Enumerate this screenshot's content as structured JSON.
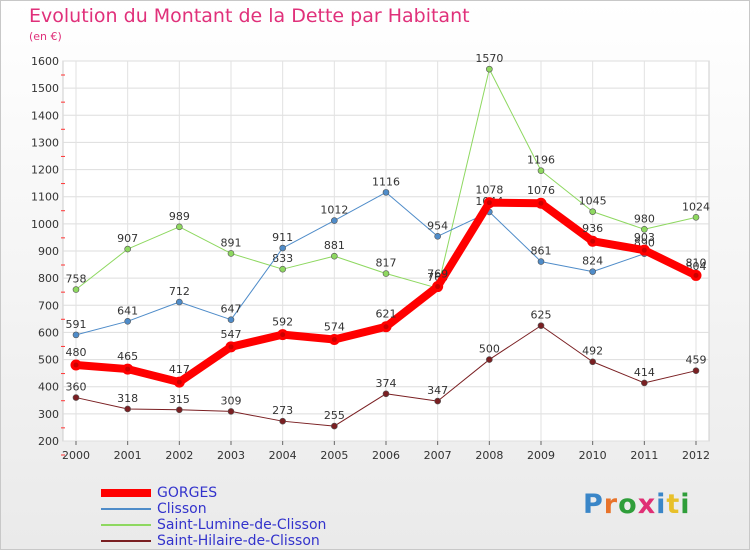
{
  "header": {
    "title": "Evolution du Montant de la Dette par Habitant",
    "subtitle": "(en €)"
  },
  "logo": {
    "text": "Proxiti",
    "letter_colors": [
      "#3a86c8",
      "#e8732a",
      "#2f9e3a",
      "#e02f75",
      "#3a86c8",
      "#e8c02a",
      "#2f9e3a"
    ]
  },
  "chart_data": {
    "type": "line",
    "title": "Evolution du Montant de la Dette par Habitant",
    "ylabel": "(en €)",
    "xlabel": "",
    "x": [
      "2000",
      "2001",
      "2002",
      "2003",
      "2004",
      "2005",
      "2006",
      "2007",
      "2008",
      "2009",
      "2010",
      "2011",
      "2012"
    ],
    "ylim": [
      200,
      1600
    ],
    "yticks": [
      "200",
      "300",
      "400",
      "500",
      "600",
      "700",
      "800",
      "900",
      "1000",
      "1100",
      "1200",
      "1300",
      "1400",
      "1500",
      "1600"
    ],
    "grid": true,
    "legend_position": "bottom-left",
    "series": [
      {
        "name": "Saint-Hilaire-de-Clisson",
        "color": "#7a1f22",
        "width": 1,
        "values": [
          360,
          318,
          315,
          309,
          273,
          255,
          374,
          347,
          500,
          625,
          492,
          414,
          459
        ],
        "labels": [
          "360",
          "318",
          "315",
          "309",
          "273",
          "255",
          "374",
          "347",
          "500",
          "625",
          "492",
          "414",
          "459"
        ]
      },
      {
        "name": "Saint-Lumine-de-Clisson",
        "color": "#8ed860",
        "width": 1,
        "values": [
          758,
          907,
          989,
          891,
          833,
          881,
          817,
          763,
          1570,
          1196,
          1045,
          980,
          1024
        ],
        "labels": [
          "758",
          "907",
          "989",
          "891",
          "833",
          "881",
          "817",
          "763",
          "1570",
          "1196",
          "1045",
          "980",
          "1024"
        ]
      },
      {
        "name": "Clisson",
        "color": "#4f8cc9",
        "width": 1,
        "values": [
          591,
          641,
          712,
          647,
          911,
          1012,
          1116,
          954,
          1044,
          861,
          824,
          890,
          804
        ],
        "labels": [
          "591",
          "641",
          "712",
          "647",
          "911",
          "1012",
          "1116",
          "954",
          "1044",
          "861",
          "824",
          "890",
          "804"
        ]
      },
      {
        "name": "GORGES",
        "color": "#ff0000",
        "width": 8,
        "values": [
          480,
          465,
          417,
          547,
          592,
          574,
          621,
          769,
          1078,
          1076,
          936,
          903,
          810
        ],
        "labels": [
          "480",
          "465",
          "417",
          "547",
          "592",
          "574",
          "621",
          "769",
          "1078",
          "1076",
          "936",
          "903",
          "810"
        ]
      }
    ]
  }
}
